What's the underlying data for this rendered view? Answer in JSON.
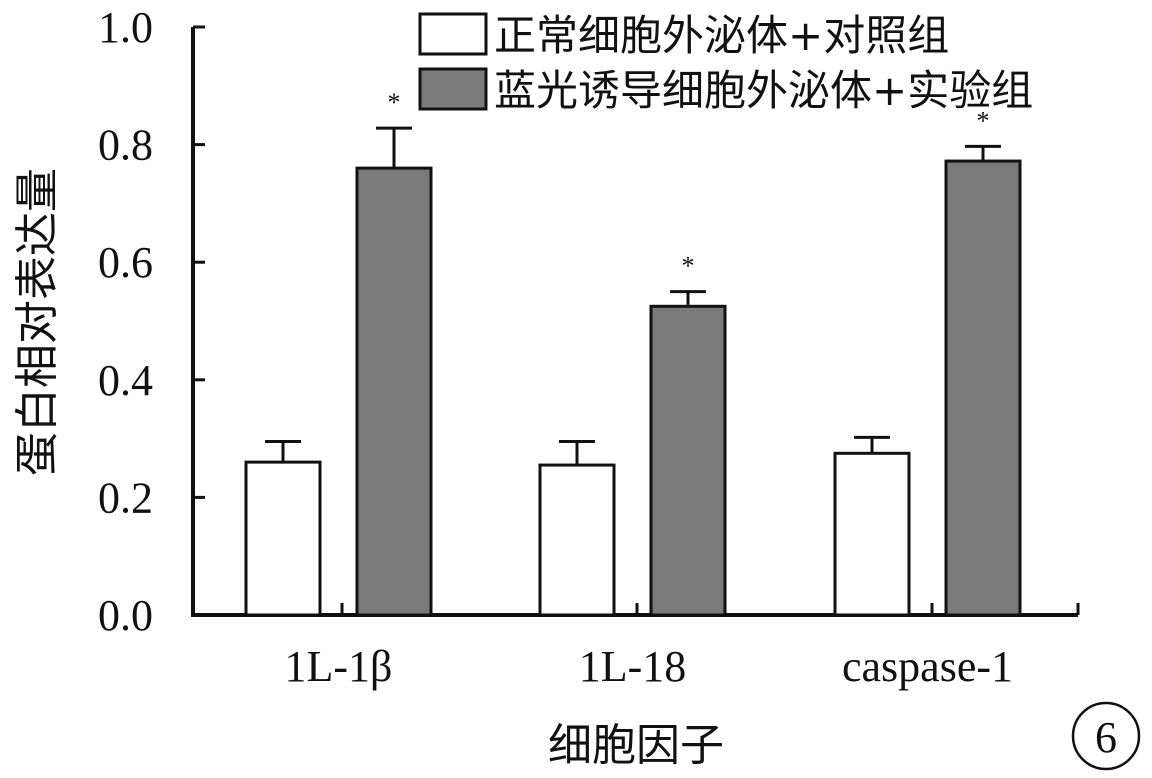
{
  "chart_data": {
    "type": "bar",
    "categories": [
      "1L-1β",
      "1L-18",
      "caspase-1"
    ],
    "series": [
      {
        "name": "正常细胞外泌体+对照组",
        "values": [
          0.26,
          0.255,
          0.275
        ],
        "error": [
          0.035,
          0.04,
          0.027
        ],
        "color": "#ffffff"
      },
      {
        "name": "蓝光诱导细胞外泌体+实验组",
        "values": [
          0.76,
          0.525,
          0.772
        ],
        "error": [
          0.068,
          0.025,
          0.025
        ],
        "color": "#7a7a7a",
        "annotation": "*"
      }
    ],
    "xlabel": "细胞因子",
    "ylabel": "蛋白相对表达量",
    "ylim": [
      0,
      1.0
    ],
    "yticks": [
      "0.0",
      "0.2",
      "0.4",
      "0.6",
      "0.8",
      "1.0"
    ],
    "grid": false,
    "legend": "top-right"
  },
  "panel_label": "6"
}
